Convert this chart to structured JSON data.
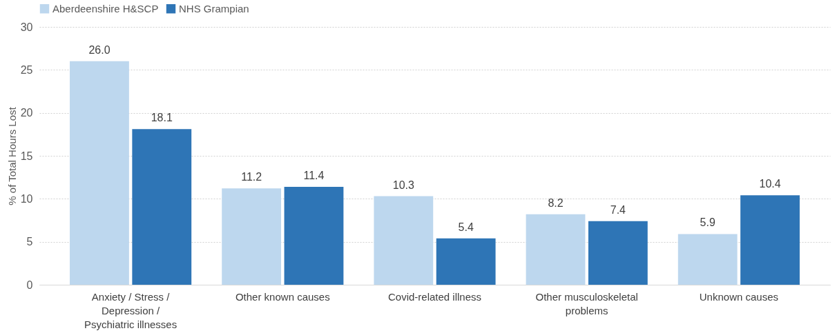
{
  "chart_data": {
    "type": "bar",
    "ylabel": "% of Total Hours Lost",
    "categories": [
      "Anxiety / Stress / Depression / Psychiatric illnesses",
      "Other known causes",
      "Covid-related illness",
      "Other musculoskeletal problems",
      "Unknown causes"
    ],
    "series": [
      {
        "name": "Aberdeenshire H&SCP",
        "color": "#bdd7ee",
        "values": [
          26.0,
          11.2,
          10.3,
          8.2,
          5.9
        ],
        "value_labels": [
          "26.0",
          "11.2",
          "10.3",
          "8.2",
          "5.9"
        ]
      },
      {
        "name": "NHS Grampian",
        "color": "#2e75b6",
        "values": [
          18.1,
          11.4,
          5.4,
          7.4,
          10.4
        ],
        "value_labels": [
          "18.1",
          "11.4",
          "5.4",
          "7.4",
          "10.4"
        ]
      }
    ],
    "ylim": [
      0,
      30
    ],
    "yticks": [
      0,
      5,
      10,
      15,
      20,
      25,
      30
    ],
    "grid": "y",
    "legend": "top"
  }
}
